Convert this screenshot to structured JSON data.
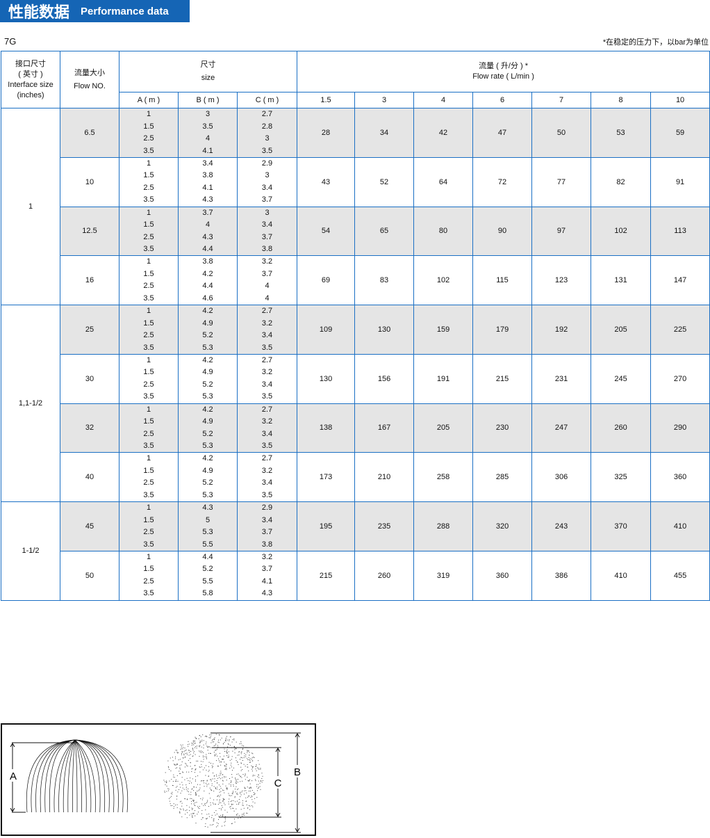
{
  "banner": {
    "title_zh": "性能数据",
    "title_en": "Performance data",
    "color": "#1565b5"
  },
  "model": "7G",
  "note": "*在稳定的压力下，以bar为单位",
  "table": {
    "headers": {
      "interface_zh": "接口尺寸",
      "interface_zh2": "( 英寸 )",
      "interface_en": "Interface size",
      "interface_en2": "(inches)",
      "flow_no_zh": "流量大小",
      "flow_no_en": "Flow NO.",
      "size_zh": "尺寸",
      "size_en": "size",
      "a": "A ( m )",
      "b": "B ( m )",
      "c": "C ( m )",
      "flow_rate_zh": "流量 ( 升/分 ) *",
      "flow_rate_en": "Flow rate ( L/min )",
      "pressures": [
        "1.5",
        "3",
        "4",
        "6",
        "7",
        "8",
        "10"
      ]
    },
    "sections": [
      {
        "interface": "1",
        "groups": [
          {
            "flow_no": "6.5",
            "a": [
              "1",
              "1.5",
              "2.5",
              "3.5"
            ],
            "b": [
              "3",
              "3.5",
              "4",
              "4.1"
            ],
            "c": [
              "2.7",
              "2.8",
              "3",
              "3.5"
            ],
            "rates": [
              "28",
              "34",
              "42",
              "47",
              "50",
              "53",
              "59"
            ]
          },
          {
            "flow_no": "10",
            "a": [
              "1",
              "1.5",
              "2.5",
              "3.5"
            ],
            "b": [
              "3.4",
              "3.8",
              "4.1",
              "4.3"
            ],
            "c": [
              "2.9",
              "3",
              "3.4",
              "3.7"
            ],
            "rates": [
              "43",
              "52",
              "64",
              "72",
              "77",
              "82",
              "91"
            ]
          },
          {
            "flow_no": "12.5",
            "a": [
              "1",
              "1.5",
              "2.5",
              "3.5"
            ],
            "b": [
              "3.7",
              "4",
              "4.3",
              "4.4"
            ],
            "c": [
              "3",
              "3.4",
              "3.7",
              "3.8"
            ],
            "rates": [
              "54",
              "65",
              "80",
              "90",
              "97",
              "102",
              "113"
            ]
          },
          {
            "flow_no": "16",
            "a": [
              "1",
              "1.5",
              "2.5",
              "3.5"
            ],
            "b": [
              "3.8",
              "4.2",
              "4.4",
              "4.6"
            ],
            "c": [
              "3.2",
              "3.7",
              "4",
              "4"
            ],
            "rates": [
              "69",
              "83",
              "102",
              "115",
              "123",
              "131",
              "147"
            ]
          }
        ]
      },
      {
        "interface": "1,1-1/2",
        "groups": [
          {
            "flow_no": "25",
            "a": [
              "1",
              "1.5",
              "2.5",
              "3.5"
            ],
            "b": [
              "4.2",
              "4.9",
              "5.2",
              "5.3"
            ],
            "c": [
              "2.7",
              "3.2",
              "3.4",
              "3.5"
            ],
            "rates": [
              "109",
              "130",
              "159",
              "179",
              "192",
              "205",
              "225"
            ]
          },
          {
            "flow_no": "30",
            "a": [
              "1",
              "1.5",
              "2.5",
              "3.5"
            ],
            "b": [
              "4.2",
              "4.9",
              "5.2",
              "5.3"
            ],
            "c": [
              "2.7",
              "3.2",
              "3.4",
              "3.5"
            ],
            "rates": [
              "130",
              "156",
              "191",
              "215",
              "231",
              "245",
              "270"
            ]
          },
          {
            "flow_no": "32",
            "a": [
              "1",
              "1.5",
              "2.5",
              "3.5"
            ],
            "b": [
              "4.2",
              "4.9",
              "5.2",
              "5.3"
            ],
            "c": [
              "2.7",
              "3.2",
              "3.4",
              "3.5"
            ],
            "rates": [
              "138",
              "167",
              "205",
              "230",
              "247",
              "260",
              "290"
            ]
          },
          {
            "flow_no": "40",
            "a": [
              "1",
              "1.5",
              "2.5",
              "3.5"
            ],
            "b": [
              "4.2",
              "4.9",
              "5.2",
              "5.3"
            ],
            "c": [
              "2.7",
              "3.2",
              "3.4",
              "3.5"
            ],
            "rates": [
              "173",
              "210",
              "258",
              "285",
              "306",
              "325",
              "360"
            ]
          }
        ]
      },
      {
        "interface": "1-1/2",
        "groups": [
          {
            "flow_no": "45",
            "a": [
              "1",
              "1.5",
              "2.5",
              "3.5"
            ],
            "b": [
              "4.3",
              "5",
              "5.3",
              "5.5"
            ],
            "c": [
              "2.9",
              "3.4",
              "3.7",
              "3.8"
            ],
            "rates": [
              "195",
              "235",
              "288",
              "320",
              "243",
              "370",
              "410"
            ]
          },
          {
            "flow_no": "50",
            "a": [
              "1",
              "1.5",
              "2.5",
              "3.5"
            ],
            "b": [
              "4.4",
              "5.2",
              "5.5",
              "5.8"
            ],
            "c": [
              "3.2",
              "3.7",
              "4.1",
              "4.3"
            ],
            "rates": [
              "215",
              "260",
              "319",
              "360",
              "386",
              "410",
              "455"
            ]
          }
        ]
      }
    ]
  },
  "diagram": {
    "label_a": "A",
    "label_b": "B",
    "label_c": "C"
  }
}
